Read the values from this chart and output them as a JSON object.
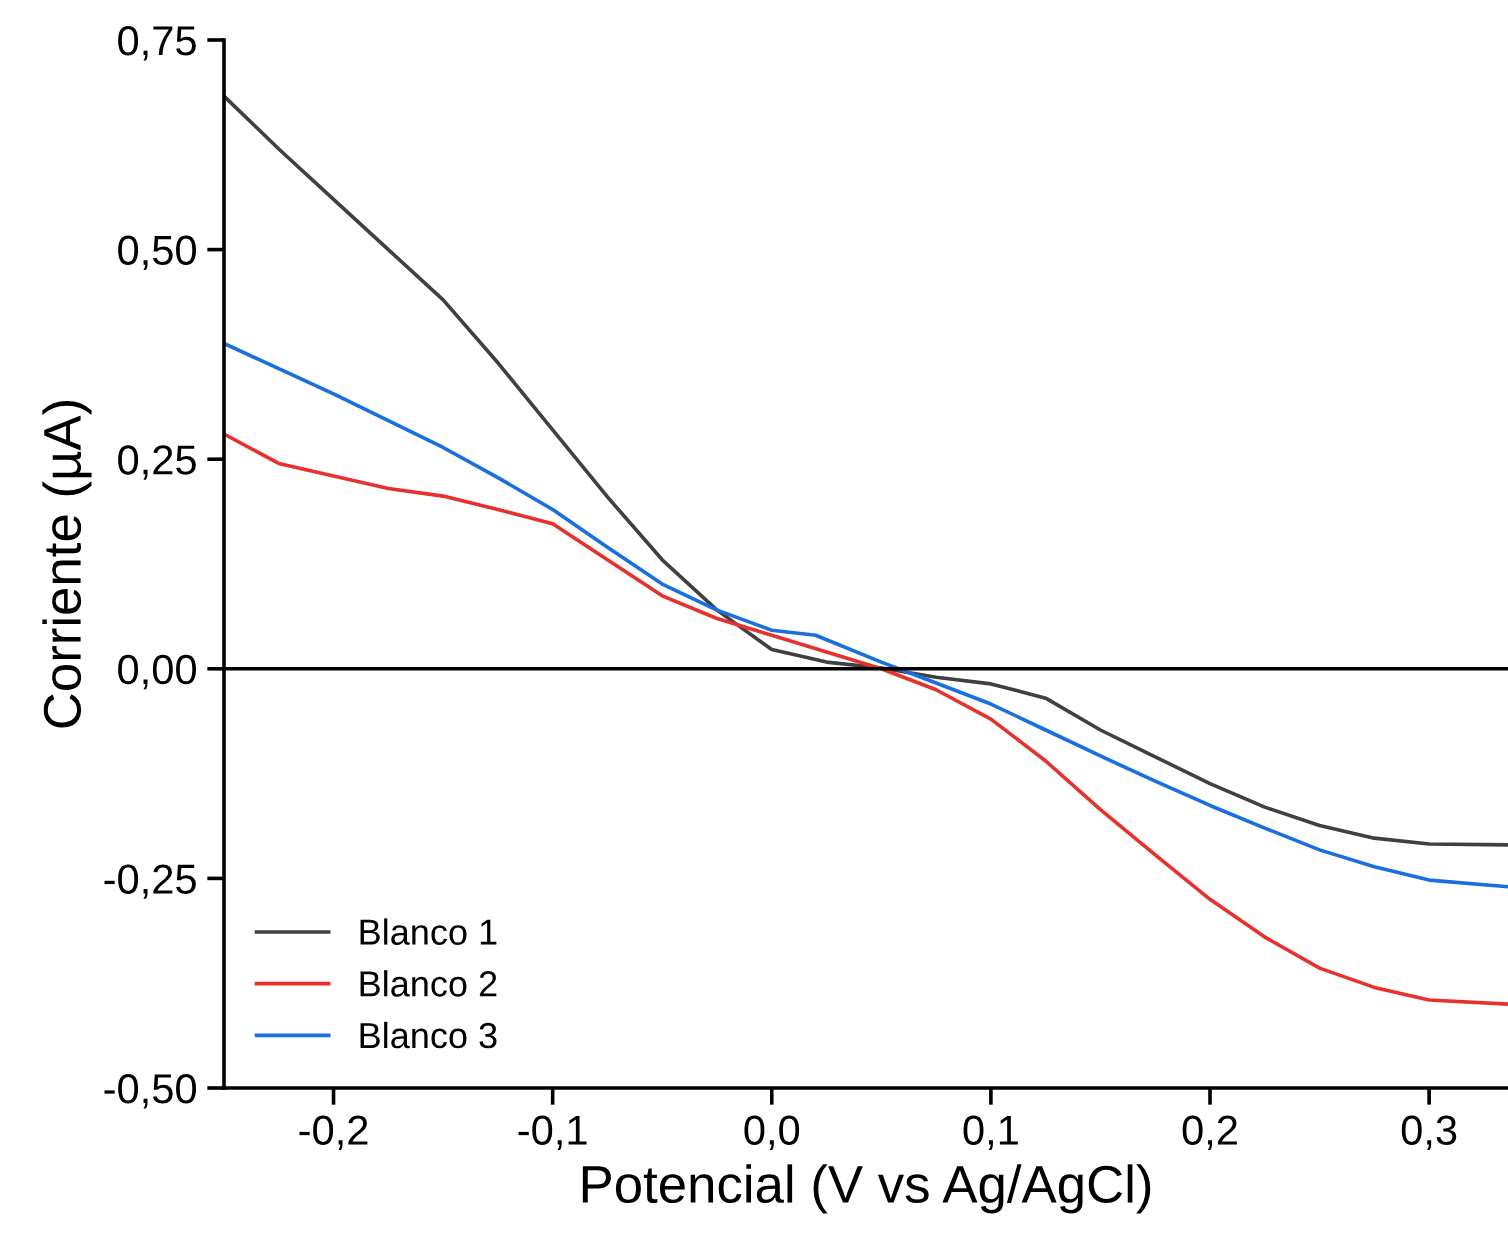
{
  "chart_data": {
    "type": "line",
    "xlabel": "Potencial (V vs Ag/AgCl)",
    "ylabel": "Corriente (µA)",
    "xlim": [
      -0.25,
      0.336
    ],
    "ylim": [
      -0.5,
      0.75
    ],
    "xticks": [
      {
        "value": -0.2,
        "label": "-0,2"
      },
      {
        "value": -0.1,
        "label": "-0,1"
      },
      {
        "value": 0.0,
        "label": "0,0"
      },
      {
        "value": 0.1,
        "label": "0,1"
      },
      {
        "value": 0.2,
        "label": "0,2"
      },
      {
        "value": 0.3,
        "label": "0,3"
      }
    ],
    "yticks": [
      {
        "value": -0.5,
        "label": "-0,50"
      },
      {
        "value": -0.25,
        "label": "-0,25"
      },
      {
        "value": 0.0,
        "label": "0,00"
      },
      {
        "value": 0.25,
        "label": "0,25"
      },
      {
        "value": 0.5,
        "label": "0,50"
      },
      {
        "value": 0.75,
        "label": "0,75"
      }
    ],
    "ref_lines": [
      {
        "axis": "y",
        "value": 0,
        "color": "#000000"
      }
    ],
    "legend": "bottom left",
    "grid": false,
    "series": [
      {
        "name": "Blanco 1",
        "color": "#404040",
        "x": [
          -0.25,
          -0.225,
          -0.2,
          -0.175,
          -0.15,
          -0.125,
          -0.1,
          -0.075,
          -0.05,
          -0.025,
          0.0,
          0.025,
          0.05,
          0.075,
          0.1,
          0.125,
          0.15,
          0.175,
          0.2,
          0.225,
          0.25,
          0.275,
          0.3,
          0.336
        ],
        "values": [
          0.683,
          0.62,
          0.56,
          0.5,
          0.44,
          0.365,
          0.285,
          0.205,
          0.13,
          0.07,
          0.023,
          0.008,
          0.001,
          -0.01,
          -0.018,
          -0.035,
          -0.073,
          -0.105,
          -0.137,
          -0.165,
          -0.187,
          -0.202,
          -0.209,
          -0.21
        ]
      },
      {
        "name": "Blanco 2",
        "color": "#e8302c",
        "x": [
          -0.25,
          -0.225,
          -0.2,
          -0.175,
          -0.15,
          -0.125,
          -0.1,
          -0.075,
          -0.05,
          -0.025,
          0.0,
          0.025,
          0.05,
          0.075,
          0.1,
          0.125,
          0.15,
          0.175,
          0.2,
          0.225,
          0.25,
          0.275,
          0.3,
          0.336
        ],
        "values": [
          0.28,
          0.245,
          0.23,
          0.215,
          0.206,
          0.19,
          0.173,
          0.13,
          0.087,
          0.06,
          0.04,
          0.02,
          0.0,
          -0.025,
          -0.06,
          -0.11,
          -0.168,
          -0.222,
          -0.275,
          -0.32,
          -0.357,
          -0.38,
          -0.395,
          -0.4
        ]
      },
      {
        "name": "Blanco 3",
        "color": "#1a6fdf",
        "x": [
          -0.25,
          -0.225,
          -0.2,
          -0.175,
          -0.15,
          -0.125,
          -0.1,
          -0.075,
          -0.05,
          -0.025,
          0.0,
          0.02,
          0.05,
          0.075,
          0.1,
          0.125,
          0.15,
          0.175,
          0.2,
          0.225,
          0.25,
          0.275,
          0.3,
          0.336
        ],
        "values": [
          0.388,
          0.358,
          0.328,
          0.296,
          0.264,
          0.228,
          0.19,
          0.145,
          0.101,
          0.07,
          0.046,
          0.04,
          0.008,
          -0.017,
          -0.042,
          -0.073,
          -0.104,
          -0.134,
          -0.163,
          -0.19,
          -0.216,
          -0.236,
          -0.252,
          -0.26
        ]
      }
    ]
  }
}
